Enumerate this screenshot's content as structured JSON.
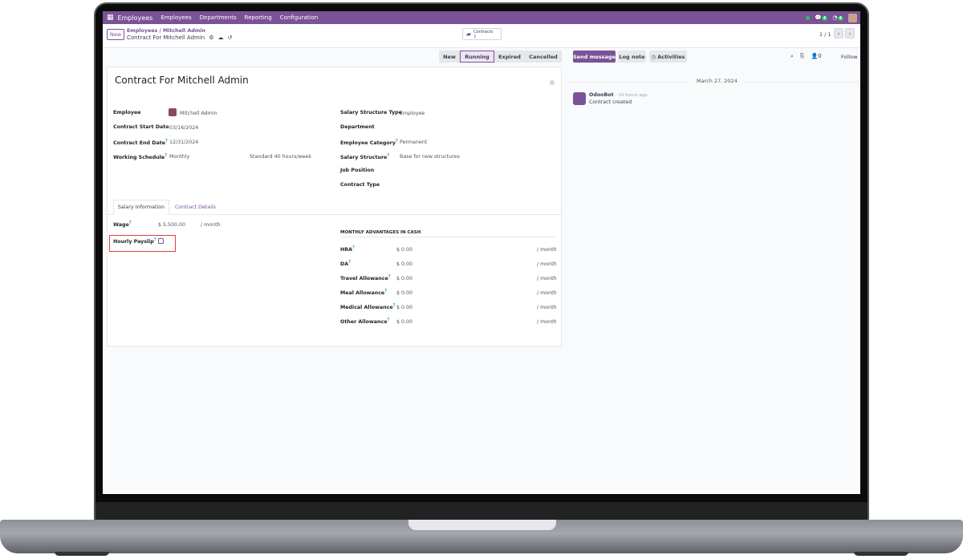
{
  "navbar": {
    "app": "Employees",
    "menu": [
      "Employees",
      "Departments",
      "Reporting",
      "Configuration"
    ],
    "chat_badge": "4",
    "activity_badge": "4"
  },
  "control": {
    "new": "New",
    "breadcrumb_parent": "Employees",
    "breadcrumb_sep": "/",
    "breadcrumb_item": "Mitchell Admin",
    "record": "Contract For Mitchell Admin",
    "smart_label": "Contracts",
    "smart_count": "2",
    "pager": "1 / 1"
  },
  "stages": [
    "New",
    "Running",
    "Expired",
    "Cancelled"
  ],
  "active_stage": "Running",
  "chatter": {
    "send": "Send message",
    "log": "Log note",
    "activities": "Activities",
    "followers": "0",
    "follow": "Follow",
    "date": "March 27, 2024",
    "author": "OdooBot",
    "time": "- 10 hours ago",
    "message": "Contract created"
  },
  "form": {
    "title": "Contract For Mitchell Admin",
    "left": [
      {
        "label": "Employee",
        "value": "Mitchell Admin"
      },
      {
        "label": "Contract Start Date",
        "value": "03/16/2024"
      },
      {
        "label": "Contract End Date",
        "value": "12/31/2024"
      },
      {
        "label": "Working Schedule",
        "value": "Monthly",
        "extra": "Standard 40 hours/week"
      }
    ],
    "right": [
      {
        "label": "Salary Structure Type",
        "value": "Employee"
      },
      {
        "label": "Department",
        "value": ""
      },
      {
        "label": "Employee Category",
        "value": "Permanent"
      },
      {
        "label": "Salary Structure",
        "value": "Base for new structures"
      },
      {
        "label": "Job Position",
        "value": ""
      },
      {
        "label": "Contract Type",
        "value": ""
      }
    ],
    "tabs": [
      "Salary Information",
      "Contract Details"
    ],
    "wage_label": "Wage",
    "wage": "$ 5,500.00",
    "per_month": "/ month",
    "hourly_label": "Hourly Payslip",
    "hourly_checked": false,
    "advantages_title": "MONTHLY ADVANTAGES IN CASH",
    "advantages": [
      {
        "label": "HRA",
        "value": "$ 0.00"
      },
      {
        "label": "DA",
        "value": "$ 0.00"
      },
      {
        "label": "Travel Allowance",
        "value": "$ 0.00"
      },
      {
        "label": "Meal Allowance",
        "value": "$ 0.00"
      },
      {
        "label": "Medical Allowance",
        "value": "$ 0.00"
      },
      {
        "label": "Other Allowance",
        "value": "$ 0.00"
      }
    ]
  },
  "colors": {
    "brand": "#7b5297",
    "highlight": "#e53e3e"
  }
}
